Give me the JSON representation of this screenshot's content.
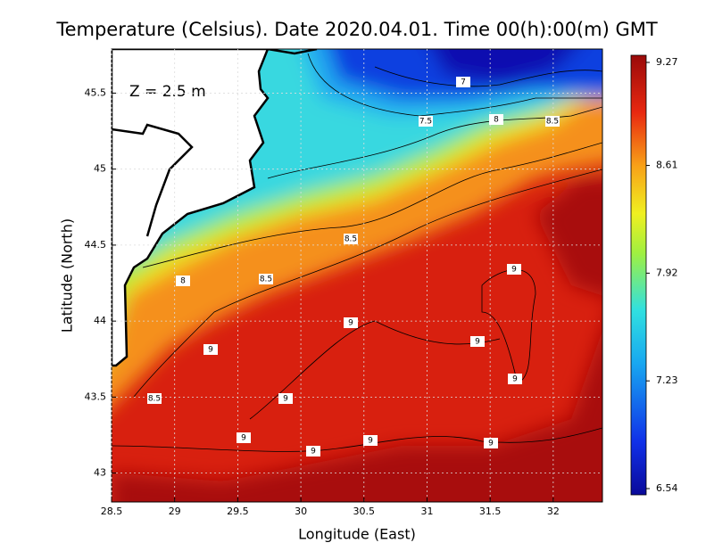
{
  "chart_data": {
    "type": "map",
    "title": "Temperature (Celsius). Date 2020.04.01. Time 00(h):00(m) GMT",
    "annotation": "Z = 2.5 m",
    "xlabel": "Longitude (East)",
    "ylabel": "Latitude (North)",
    "xlim": [
      28.5,
      32.39
    ],
    "ylim": [
      42.81,
      45.79
    ],
    "xticks": [
      28.5,
      29,
      29.5,
      30,
      30.5,
      31,
      31.5,
      32
    ],
    "yticks": [
      43,
      43.5,
      44,
      44.5,
      45,
      45.5
    ],
    "grid": true,
    "colorbar_lim": [
      6.54,
      9.27
    ],
    "colorbar_ticks": [
      6.54,
      7.23,
      7.92,
      8.61,
      9.27
    ],
    "contour_labels": [
      7,
      7.5,
      8,
      8.5,
      8.5,
      8,
      8.5,
      9,
      9,
      9,
      9,
      8.5,
      9,
      9,
      9,
      9,
      9,
      9
    ]
  }
}
